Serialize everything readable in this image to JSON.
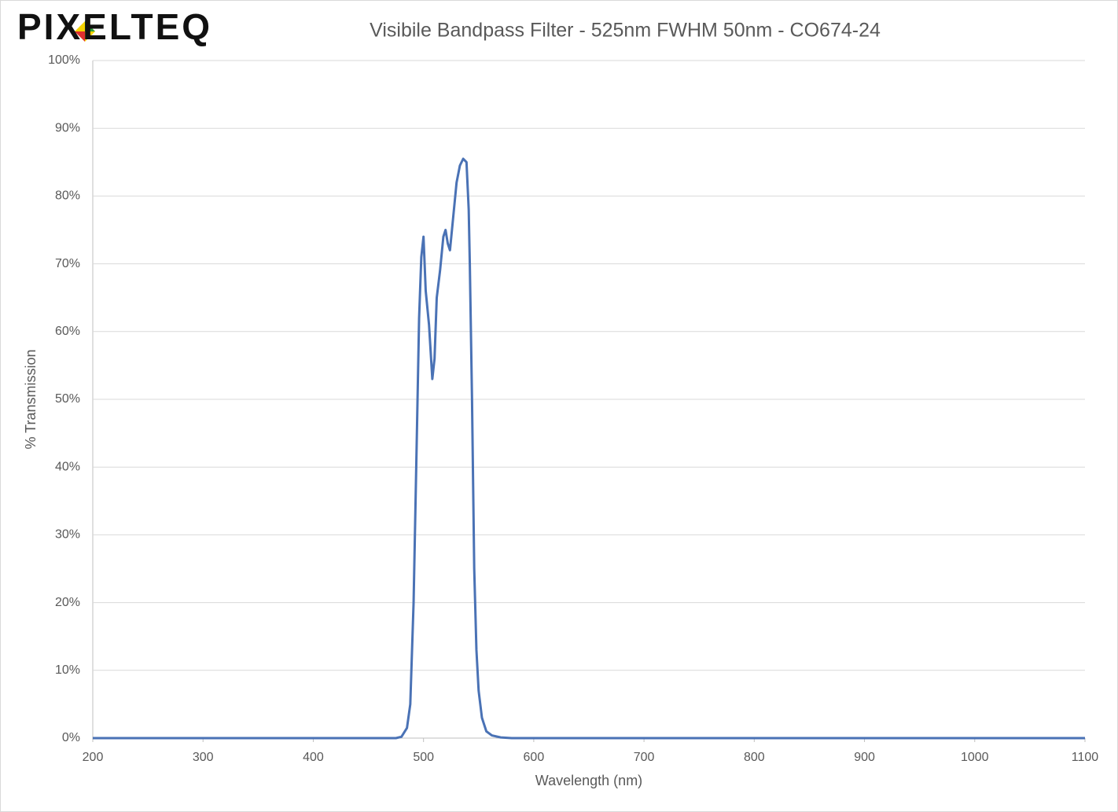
{
  "logo": "PIXELTEQ",
  "chart_data": {
    "type": "line",
    "title": "Visibile Bandpass Filter - 525nm FWHM 50nm - CO674-24",
    "x_label": "Wavelength (nm)",
    "y_label": "% Transmission",
    "color": "#4a72b5",
    "grid": true,
    "x": [
      200,
      300,
      400,
      475,
      480,
      485,
      488,
      491,
      494,
      496,
      498,
      500,
      502,
      505,
      508,
      510,
      512,
      515,
      518,
      520,
      522,
      524,
      527,
      530,
      533,
      536,
      539,
      541,
      542,
      544,
      546,
      548,
      550,
      553,
      557,
      562,
      570,
      580,
      700,
      900,
      1100
    ],
    "values": [
      0,
      0,
      0,
      0,
      0.2,
      1.5,
      5,
      20,
      45,
      62,
      71,
      74,
      66,
      61,
      53,
      56,
      65,
      69,
      74,
      75,
      73,
      72,
      77,
      82,
      84.5,
      85.5,
      85,
      78,
      70,
      50,
      25,
      13,
      7,
      3,
      1,
      0.4,
      0.1,
      0,
      0,
      0,
      0
    ],
    "xlim": [
      200,
      1100
    ],
    "ylim": [
      0,
      100
    ],
    "xticks": [
      200,
      300,
      400,
      500,
      600,
      700,
      800,
      900,
      1000,
      1100
    ],
    "yticks": [
      {
        "value": 0,
        "label": "0%"
      },
      {
        "value": 10,
        "label": "10%"
      },
      {
        "value": 20,
        "label": "20%"
      },
      {
        "value": 30,
        "label": "30%"
      },
      {
        "value": 40,
        "label": "40%"
      },
      {
        "value": 50,
        "label": "50%"
      },
      {
        "value": 60,
        "label": "60%"
      },
      {
        "value": 70,
        "label": "70%"
      },
      {
        "value": 80,
        "label": "80%"
      },
      {
        "value": 90,
        "label": "90%"
      },
      {
        "value": 100,
        "label": "100%"
      }
    ]
  }
}
